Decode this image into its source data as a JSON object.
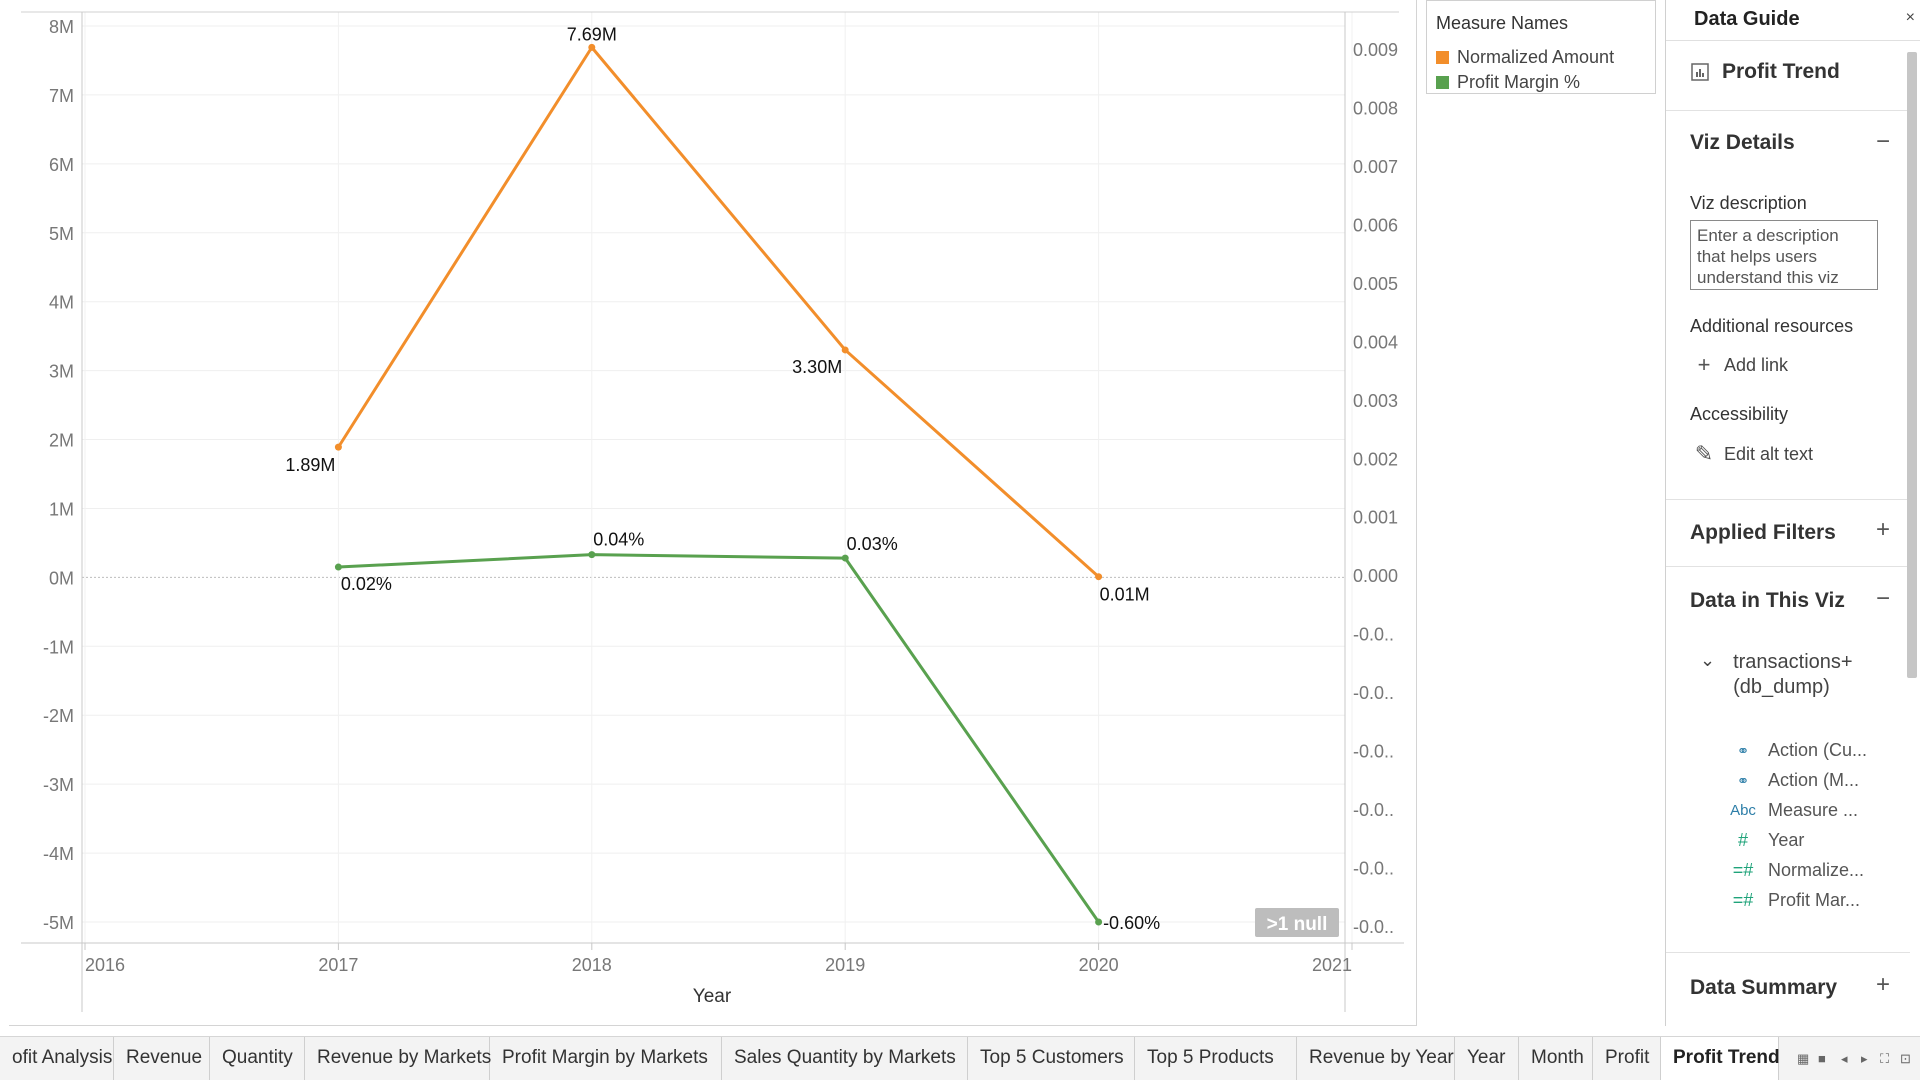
{
  "chart_data": {
    "type": "line",
    "xlabel": "Year",
    "x_ticks": [
      "2016",
      "2017",
      "2018",
      "2019",
      "2020",
      "2021"
    ],
    "x": [
      2017,
      2018,
      2019,
      2020
    ],
    "xlim": [
      2016,
      2021
    ],
    "ylim_left": [
      -5000000,
      8000000
    ],
    "ylim_right": [
      -0.0055,
      0.0095
    ],
    "y_ticks_left": [
      "8M",
      "7M",
      "6M",
      "5M",
      "4M",
      "3M",
      "2M",
      "1M",
      "0M",
      "-1M",
      "-2M",
      "-3M",
      "-4M",
      "-5M"
    ],
    "y_ticks_right": [
      "0.009",
      "0.008",
      "0.007",
      "0.006",
      "0.005",
      "0.004",
      "0.003",
      "0.002",
      "0.001",
      "0.000",
      "-0.0..",
      "-0.0..",
      "-0.0..",
      "-0.0..",
      "-0.0..",
      "-0.0.."
    ],
    "grid": true,
    "series": [
      {
        "name": "Normalized Amount",
        "color": "#f28e2b",
        "axis": "left",
        "values": [
          1890000,
          7690000,
          3300000,
          10000
        ],
        "labels": [
          "1.89M",
          "7.69M",
          "3.30M",
          "0.01M"
        ]
      },
      {
        "name": "Profit Margin %",
        "color": "#59a14f",
        "axis": "left",
        "values": [
          150000,
          330000,
          280000,
          -5000000
        ],
        "labels": [
          "0.02%",
          "0.04%",
          "0.03%",
          "-0.60%"
        ]
      }
    ],
    "null_badge": ">1 null"
  },
  "legend": {
    "title": "Measure Names",
    "items": [
      {
        "label": "Normalized Amount",
        "color": "#f28e2b"
      },
      {
        "label": "Profit Margin %",
        "color": "#59a14f"
      }
    ]
  },
  "guide": {
    "title": "Data Guide",
    "close": "×",
    "sheet_name": "Profit Trend",
    "viz_details": "Viz Details",
    "viz_description_label": "Viz description",
    "viz_description_placeholder": "Enter a description that helps users understand this viz",
    "additional_resources": "Additional resources",
    "add_link": "Add link",
    "accessibility": "Accessibility",
    "edit_alt_text": "Edit alt text",
    "applied_filters": "Applied Filters",
    "data_in_viz": "Data in This Viz",
    "datasource": "transactions+ (db_dump)",
    "fields": [
      {
        "label": "Action (Cu...",
        "icon": "action-set-icon"
      },
      {
        "label": "Action (M...",
        "icon": "action-set-icon"
      },
      {
        "label": "Measure ...",
        "icon": "abc-text-icon"
      },
      {
        "label": "Year",
        "icon": "hash-icon"
      },
      {
        "label": "Normalize...",
        "icon": "calc-hash-icon"
      },
      {
        "label": "Profit Mar...",
        "icon": "calc-hash-icon"
      }
    ],
    "data_summary": "Data Summary"
  },
  "tabs": [
    {
      "label": "ofit Analysis",
      "active": false
    },
    {
      "label": "Revenue",
      "active": false
    },
    {
      "label": "Quantity",
      "active": false
    },
    {
      "label": "Revenue by Markets",
      "active": false
    },
    {
      "label": "Profit Margin by Markets",
      "active": false
    },
    {
      "label": "Sales Quantity by Markets",
      "active": false
    },
    {
      "label": "Top 5 Customers",
      "active": false
    },
    {
      "label": "Top 5 Products",
      "active": false
    },
    {
      "label": "Revenue by Year",
      "active": false
    },
    {
      "label": "Year",
      "active": false
    },
    {
      "label": "Month",
      "active": false
    },
    {
      "label": "Profit",
      "active": false
    },
    {
      "label": "Profit Trend",
      "active": true
    }
  ]
}
